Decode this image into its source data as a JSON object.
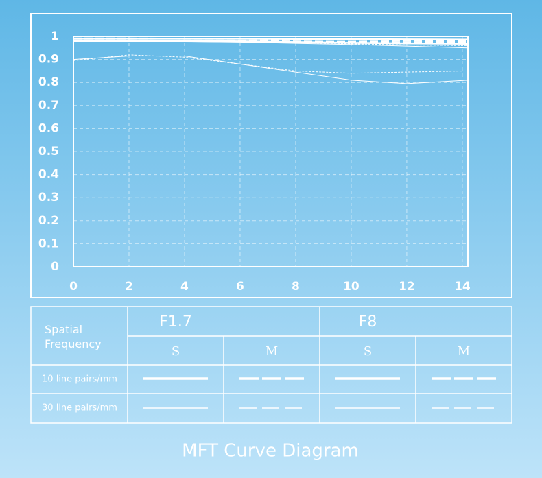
{
  "chart_data": {
    "type": "line",
    "title": "MFT Curve Diagram",
    "xlim": [
      0,
      14.2
    ],
    "xticks": [
      0,
      2,
      4,
      6,
      8,
      10,
      12,
      14
    ],
    "ylim": [
      0,
      1
    ],
    "yticks": [
      0,
      0.1,
      0.2,
      0.3,
      0.4,
      0.5,
      0.6,
      0.7,
      0.8,
      0.9,
      1
    ],
    "grid": true,
    "x": [
      0,
      2,
      4,
      6,
      8,
      10,
      12,
      14.2
    ],
    "series": [
      {
        "color": "#ffffff",
        "width": 2.5,
        "dash": false,
        "values": [
          0.98,
          0.98,
          0.98,
          0.978,
          0.975,
          0.972,
          0.97,
          0.968
        ]
      },
      {
        "color": "#ffffff",
        "width": 2.5,
        "dash": true,
        "values": [
          0.982,
          0.982,
          0.981,
          0.98,
          0.978,
          0.976,
          0.975,
          0.974
        ]
      },
      {
        "color": "#ffffff",
        "width": 2.5,
        "dash": false,
        "values": [
          0.99,
          0.99,
          0.99,
          0.99,
          0.989,
          0.988,
          0.987,
          0.986
        ]
      },
      {
        "color": "#ffffff",
        "width": 2.5,
        "dash": true,
        "values": [
          0.991,
          0.991,
          0.99,
          0.99,
          0.988,
          0.985,
          0.982,
          0.98
        ]
      },
      {
        "color": "#ffffff",
        "width": 1,
        "dash": false,
        "values": [
          0.9,
          0.915,
          0.915,
          0.88,
          0.845,
          0.81,
          0.795,
          0.81
        ]
      },
      {
        "color": "#ffffff",
        "width": 1,
        "dash": true,
        "values": [
          0.895,
          0.92,
          0.91,
          0.88,
          0.85,
          0.84,
          0.845,
          0.85
        ]
      },
      {
        "color": "#ffffff",
        "width": 1,
        "dash": false,
        "values": [
          0.98,
          0.98,
          0.978,
          0.975,
          0.97,
          0.965,
          0.958,
          0.95
        ]
      },
      {
        "color": "#ffffff",
        "width": 1,
        "dash": true,
        "values": [
          0.98,
          0.98,
          0.979,
          0.977,
          0.973,
          0.968,
          0.963,
          0.96
        ]
      }
    ]
  },
  "legend": {
    "header": "Spatial Frequency",
    "apertures": [
      "F1.7",
      "F8"
    ],
    "orientations": [
      "S",
      "M",
      "S",
      "M"
    ],
    "rows": [
      "10 line pairs/mm",
      "30 line pairs/mm"
    ]
  }
}
